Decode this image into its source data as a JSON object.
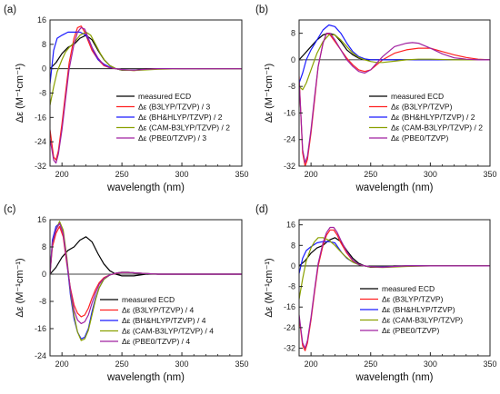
{
  "colors": {
    "measured": "#000000",
    "b3lyp": "#ff2020",
    "bhhlyp": "#1a1aff",
    "camb3lyp": "#8aa000",
    "pbe0": "#a020a0",
    "axis": "#222222"
  },
  "chart_data": [
    {
      "id": "a",
      "panel_label": "(a)",
      "type": "line",
      "xlabel": "wavelength (nm)",
      "ylabel": "Δε (M⁻¹cm⁻¹)",
      "xlim": [
        190,
        350
      ],
      "ylim": [
        -32,
        16
      ],
      "xticks": [
        200,
        250,
        300,
        350
      ],
      "yticks": [
        -32,
        -24,
        -16,
        -8,
        0,
        8,
        16
      ],
      "legend_position": "center-right",
      "series": [
        {
          "name": "measured ECD",
          "color_key": "measured",
          "x": [
            190,
            195,
            200,
            205,
            210,
            215,
            220,
            225,
            230,
            235,
            240,
            245,
            250,
            260,
            270,
            280,
            300,
            320,
            350
          ],
          "y": [
            0,
            2,
            5,
            7,
            8,
            10,
            11,
            9.5,
            6,
            3,
            1,
            0,
            -0.5,
            -0.5,
            0,
            0,
            0,
            0,
            0
          ]
        },
        {
          "name": "Δε (B3LYP/TZVP) / 3",
          "color_key": "b3lyp",
          "x": [
            190,
            193,
            195,
            197,
            200,
            203,
            206,
            210,
            213,
            216,
            219,
            222,
            225,
            230,
            235,
            240,
            245,
            250,
            260,
            270,
            280,
            300,
            320,
            350
          ],
          "y": [
            -20,
            -29,
            -30,
            -27,
            -18,
            -8,
            2,
            10,
            13.5,
            14,
            12,
            9,
            6,
            3,
            1,
            0.3,
            0,
            -0.3,
            -0.6,
            -0.2,
            0,
            0,
            0,
            0
          ]
        },
        {
          "name": "Δε (BH&HLYP/TZVP) / 2",
          "color_key": "bhhlyp",
          "x": [
            190,
            193,
            196,
            200,
            205,
            210,
            215,
            220,
            223,
            226,
            230,
            235,
            240,
            245,
            250,
            260,
            280,
            300,
            350
          ],
          "y": [
            -5,
            6,
            10,
            11,
            12,
            12,
            12,
            11,
            9,
            6,
            3,
            1.5,
            0.5,
            0,
            -0.3,
            -0.5,
            0,
            0,
            0
          ]
        },
        {
          "name": "Δε (CAM-B3LYP/TZVP) / 2",
          "color_key": "camb3lyp",
          "x": [
            190,
            193,
            196,
            200,
            203,
            206,
            210,
            215,
            220,
            224,
            228,
            232,
            236,
            240,
            245,
            250,
            260,
            280,
            300,
            350
          ],
          "y": [
            -12,
            -6,
            -1,
            3,
            5.5,
            7,
            8.5,
            11,
            12,
            11,
            8,
            5,
            2.5,
            1,
            0,
            -0.4,
            -0.6,
            -0.2,
            0,
            0
          ]
        },
        {
          "name": "Δε (PBE0/TZVP) / 3",
          "color_key": "pbe0",
          "x": [
            190,
            193,
            195,
            197,
            200,
            203,
            206,
            210,
            213,
            216,
            219,
            222,
            225,
            230,
            235,
            240,
            245,
            250,
            260,
            270,
            280,
            300,
            320,
            350
          ],
          "y": [
            -23,
            -30,
            -31,
            -28,
            -20,
            -10,
            0,
            8,
            12,
            13.5,
            13,
            10,
            7,
            3.5,
            1.2,
            0.3,
            0,
            -0.3,
            -0.5,
            -0.2,
            0,
            0,
            0,
            0
          ]
        }
      ]
    },
    {
      "id": "b",
      "panel_label": "(b)",
      "type": "line",
      "xlabel": "wavelength (nm)",
      "ylabel": "Δε (M⁻¹cm⁻¹)",
      "xlim": [
        190,
        350
      ],
      "ylim": [
        -32,
        12
      ],
      "xticks": [
        200,
        250,
        300,
        350
      ],
      "yticks": [
        -32,
        -24,
        -16,
        -8,
        0,
        8
      ],
      "legend_position": "center-right",
      "series": [
        {
          "name": "measured ECD",
          "color_key": "measured",
          "x": [
            190,
            195,
            200,
            205,
            210,
            215,
            220,
            225,
            230,
            235,
            240,
            245,
            250,
            260,
            280,
            300,
            350
          ],
          "y": [
            0,
            2,
            4,
            6,
            7.5,
            8,
            7.5,
            5.5,
            3,
            1.5,
            0.5,
            0,
            0,
            0,
            0,
            0,
            0
          ]
        },
        {
          "name": "Δε (B3LYP/TZVP)",
          "color_key": "b3lyp",
          "x": [
            190,
            193,
            195,
            197,
            200,
            203,
            206,
            210,
            213,
            216,
            220,
            225,
            230,
            235,
            240,
            245,
            250,
            255,
            260,
            270,
            280,
            290,
            300,
            310,
            320,
            330,
            340,
            350
          ],
          "y": [
            -5,
            -28,
            -32,
            -30,
            -22,
            -12,
            -2,
            5,
            8,
            7.5,
            5.5,
            3,
            0.5,
            -1.5,
            -3,
            -3.5,
            -3,
            -1.5,
            0,
            2,
            3,
            3.5,
            3.5,
            2.5,
            1.5,
            0.7,
            0.2,
            0
          ]
        },
        {
          "name": "Δε (BH&HLYP/TZVP) / 2",
          "color_key": "bhhlyp",
          "x": [
            190,
            193,
            196,
            200,
            205,
            210,
            215,
            220,
            225,
            230,
            235,
            240,
            245,
            250,
            260,
            280,
            300,
            350
          ],
          "y": [
            -7,
            -4,
            0,
            3,
            6,
            9,
            10.5,
            10,
            8,
            5,
            2.5,
            1,
            0.3,
            0,
            0,
            0,
            0,
            0
          ]
        },
        {
          "name": "Δε (CAM-B3LYP/TZVP) / 2",
          "color_key": "camb3lyp",
          "x": [
            190,
            193,
            196,
            200,
            205,
            210,
            215,
            220,
            225,
            230,
            235,
            240,
            245,
            250,
            255,
            260,
            270,
            280,
            290,
            300,
            320,
            350
          ],
          "y": [
            -8,
            -9,
            -7,
            -3,
            2,
            5.5,
            7.5,
            7.5,
            6,
            4,
            2,
            0.7,
            0,
            -0.5,
            -0.8,
            -0.8,
            -0.4,
            0,
            0.2,
            0.2,
            0,
            0
          ]
        },
        {
          "name": "Δε (PBE0/TZVP)",
          "color_key": "pbe0",
          "x": [
            190,
            193,
            195,
            197,
            200,
            203,
            206,
            210,
            213,
            216,
            220,
            225,
            230,
            235,
            240,
            245,
            250,
            255,
            260,
            270,
            280,
            285,
            290,
            300,
            310,
            320,
            330,
            340,
            350
          ],
          "y": [
            -6,
            -27,
            -31,
            -29,
            -21,
            -11,
            -2,
            5,
            8,
            8,
            6,
            3,
            0,
            -2,
            -3.5,
            -4,
            -3,
            -1,
            1,
            4,
            5,
            5.2,
            5,
            3.5,
            1.8,
            0.6,
            0.2,
            0,
            0
          ]
        }
      ]
    },
    {
      "id": "c",
      "panel_label": "(c)",
      "type": "line",
      "xlabel": "wavelength (nm)",
      "ylabel": "Δε (M⁻¹cm⁻¹)",
      "xlim": [
        190,
        350
      ],
      "ylim": [
        -24,
        16
      ],
      "xticks": [
        200,
        250,
        300,
        350
      ],
      "yticks": [
        -24,
        -16,
        -8,
        0,
        8,
        16
      ],
      "legend_position": "center-right",
      "series": [
        {
          "name": "measured ECD",
          "color_key": "measured",
          "x": [
            190,
            195,
            200,
            205,
            210,
            215,
            220,
            225,
            230,
            235,
            240,
            245,
            250,
            260,
            270,
            280,
            300,
            350
          ],
          "y": [
            0,
            2,
            5,
            7,
            8,
            10,
            11,
            9.5,
            6,
            3,
            1,
            0,
            -0.5,
            -0.5,
            0,
            0,
            0,
            0
          ]
        },
        {
          "name": "Δε (B3LYP/TZVP) / 4",
          "color_key": "b3lyp",
          "x": [
            190,
            192,
            195,
            198,
            201,
            204,
            207,
            210,
            213,
            216,
            219,
            222,
            225,
            228,
            231,
            235,
            240,
            245,
            250,
            255,
            260,
            270,
            280,
            300,
            350
          ],
          "y": [
            0,
            8,
            12,
            14,
            11,
            3,
            -4,
            -9,
            -11.5,
            -12.5,
            -12,
            -10,
            -7,
            -4.5,
            -2.5,
            -1,
            -0.2,
            0.2,
            0.5,
            0.5,
            0.4,
            0.2,
            0,
            0,
            0
          ]
        },
        {
          "name": "Δε (BH&HLYP/TZVP) / 4",
          "color_key": "bhhlyp",
          "x": [
            190,
            192,
            195,
            198,
            201,
            204,
            207,
            210,
            213,
            216,
            219,
            222,
            225,
            228,
            231,
            235,
            240,
            245,
            250,
            255,
            260,
            270,
            280,
            300,
            350
          ],
          "y": [
            0,
            10,
            14,
            15,
            12,
            4,
            -6,
            -13,
            -17,
            -19,
            -18.5,
            -16,
            -11,
            -7,
            -4,
            -1.5,
            -0.2,
            0.3,
            0.6,
            0.6,
            0.4,
            0.2,
            0,
            0,
            0
          ]
        },
        {
          "name": "Δε (CAM-B3LYP/TZVP) / 4",
          "color_key": "camb3lyp",
          "x": [
            190,
            192,
            195,
            198,
            201,
            204,
            207,
            210,
            213,
            216,
            219,
            222,
            225,
            228,
            231,
            235,
            240,
            245,
            250,
            255,
            260,
            270,
            280,
            300,
            350
          ],
          "y": [
            0,
            9,
            13,
            15.5,
            13,
            5,
            -5,
            -12,
            -17,
            -19.5,
            -19,
            -16.5,
            -12,
            -7.5,
            -4,
            -1.5,
            -0.2,
            0.3,
            0.6,
            0.6,
            0.4,
            0.2,
            0,
            0,
            0
          ]
        },
        {
          "name": "Δε (PBE0/TZVP) / 4",
          "color_key": "pbe0",
          "x": [
            190,
            192,
            195,
            198,
            201,
            204,
            207,
            210,
            213,
            216,
            219,
            222,
            225,
            228,
            231,
            235,
            240,
            245,
            250,
            255,
            260,
            270,
            280,
            300,
            350
          ],
          "y": [
            0,
            9,
            13,
            15,
            12,
            4,
            -4.5,
            -10.5,
            -13.5,
            -14.5,
            -14,
            -12,
            -8.5,
            -5.5,
            -3,
            -1.2,
            -0.2,
            0.3,
            0.5,
            0.5,
            0.4,
            0.2,
            0,
            0,
            0
          ]
        }
      ]
    },
    {
      "id": "d",
      "panel_label": "(d)",
      "type": "line",
      "xlabel": "wavelength (nm)",
      "ylabel": "Δε (M⁻¹cm⁻¹)",
      "xlim": [
        190,
        350
      ],
      "ylim": [
        -35,
        18
      ],
      "xticks": [
        200,
        250,
        300,
        350
      ],
      "yticks": [
        -32,
        -24,
        -16,
        -8,
        0,
        8,
        16
      ],
      "legend_position": "center-right",
      "series": [
        {
          "name": "measured ECD",
          "color_key": "measured",
          "x": [
            190,
            195,
            200,
            205,
            210,
            215,
            220,
            225,
            230,
            235,
            240,
            245,
            250,
            260,
            270,
            280,
            300,
            350
          ],
          "y": [
            0,
            2,
            5,
            7,
            8,
            10,
            11,
            9.5,
            6,
            3,
            1,
            0,
            -0.5,
            -0.5,
            0,
            0,
            0,
            0
          ]
        },
        {
          "name": "Δε (B3LYP/TZVP)",
          "color_key": "b3lyp",
          "x": [
            190,
            193,
            195,
            197,
            200,
            203,
            206,
            210,
            213,
            216,
            219,
            222,
            225,
            230,
            235,
            240,
            245,
            250,
            260,
            270,
            280,
            300,
            320,
            350
          ],
          "y": [
            -20,
            -31,
            -33,
            -30,
            -21,
            -10,
            0,
            8,
            12,
            14,
            14,
            12,
            9,
            5,
            2,
            0.5,
            0,
            -0.3,
            -0.5,
            -0.2,
            0,
            0,
            0,
            0
          ]
        },
        {
          "name": "Δε (BH&HLYP/TZVP)",
          "color_key": "bhhlyp",
          "x": [
            190,
            193,
            196,
            200,
            205,
            210,
            215,
            220,
            223,
            226,
            230,
            235,
            240,
            245,
            250,
            260,
            280,
            300,
            350
          ],
          "y": [
            -3,
            3,
            6,
            7.5,
            9,
            9.5,
            9.5,
            9,
            7,
            5,
            3,
            1.5,
            0.5,
            0,
            -0.3,
            -0.4,
            0,
            0,
            0
          ]
        },
        {
          "name": "Δε (CAM-B3LYP/TZVP)",
          "color_key": "camb3lyp",
          "x": [
            190,
            193,
            196,
            200,
            203,
            206,
            210,
            215,
            220,
            224,
            228,
            232,
            236,
            240,
            245,
            250,
            260,
            280,
            300,
            350
          ],
          "y": [
            -13,
            -5,
            2,
            7,
            9.5,
            11,
            11,
            10,
            8,
            6,
            4,
            2.5,
            1.2,
            0.5,
            0,
            -0.4,
            -0.6,
            -0.2,
            0,
            0
          ]
        },
        {
          "name": "Δε (PBE0/TZVP)",
          "color_key": "pbe0",
          "x": [
            190,
            193,
            195,
            197,
            200,
            203,
            206,
            210,
            213,
            216,
            219,
            222,
            225,
            230,
            235,
            240,
            245,
            250,
            260,
            270,
            280,
            300,
            320,
            350
          ],
          "y": [
            -19,
            -30,
            -32,
            -29,
            -20,
            -9,
            1,
            9,
            13,
            15,
            15,
            13,
            10,
            5.5,
            2.2,
            0.6,
            0,
            -0.3,
            -0.5,
            -0.2,
            0,
            0,
            0,
            0
          ]
        }
      ]
    }
  ]
}
